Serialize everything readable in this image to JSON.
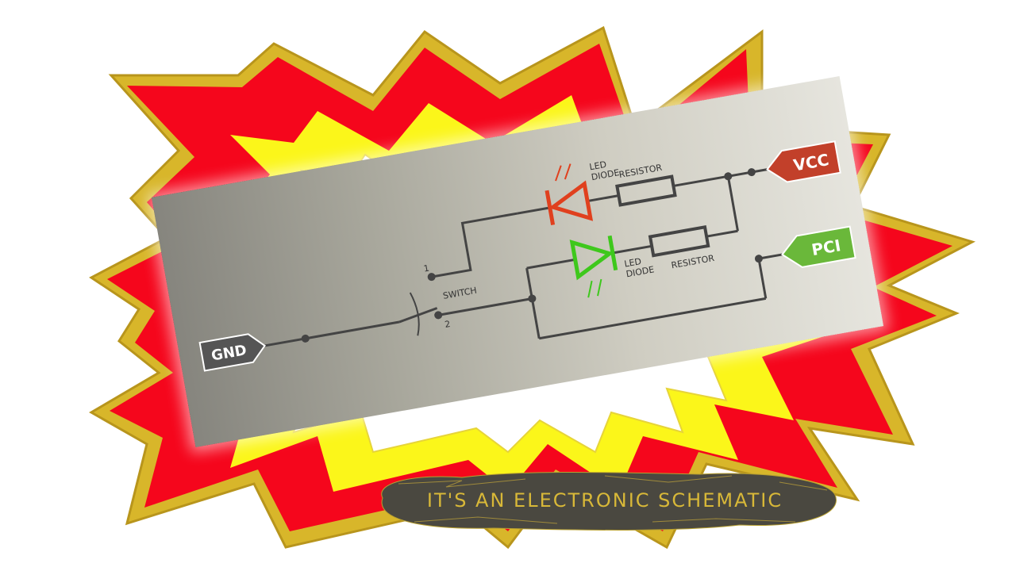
{
  "colors": {
    "burst_outer": "#d8b62a",
    "burst_red": "#f5061c",
    "burst_yellow": "#fbf61a",
    "burst_inner": "#ffffff",
    "wire": "#444444",
    "vcc_tag": "#c2402a",
    "pci_tag": "#6ab83a",
    "gnd_tag": "#555555",
    "led_red": "#e0401e",
    "led_green": "#3ec81c",
    "caption_bg": "#4a4840",
    "caption_text": "#d8b838"
  },
  "schematic": {
    "vcc": "VCC",
    "pci": "PCI",
    "gnd": "GND",
    "led_red_line1": "LED",
    "led_red_line2": "DIODE",
    "led_green_line1": "LED",
    "led_green_line2": "DIODE",
    "resistor_top": "RESISTOR",
    "resistor_bottom": "RESISTOR",
    "switch": "SWITCH",
    "switch_pos1": "1",
    "switch_pos2": "2"
  },
  "caption": "IT'S AN ELECTRONIC SCHEMATIC"
}
